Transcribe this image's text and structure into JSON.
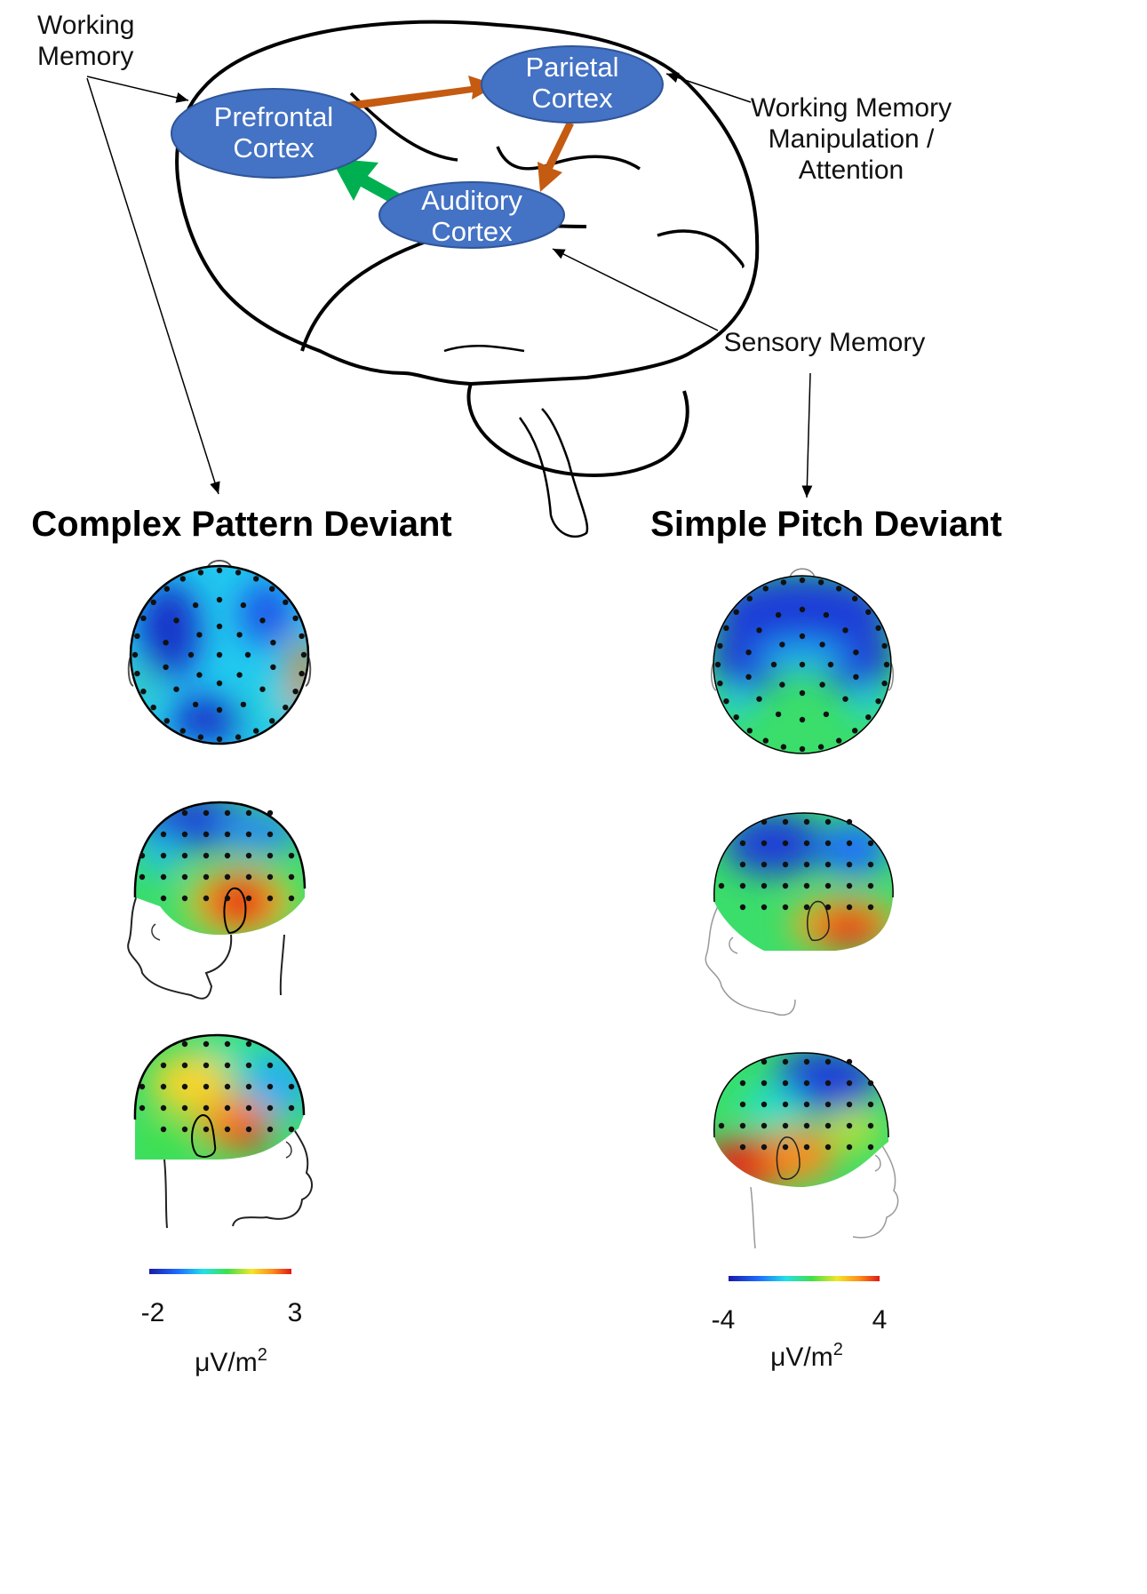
{
  "brain": {
    "nodes": [
      {
        "id": "prefrontal",
        "lines": [
          "Prefrontal",
          "Cortex"
        ]
      },
      {
        "id": "parietal",
        "lines": [
          "Parietal",
          "Cortex"
        ]
      },
      {
        "id": "auditory",
        "lines": [
          "Auditory",
          "Cortex"
        ]
      }
    ],
    "labels": {
      "working_memory": [
        "Working",
        "Memory"
      ],
      "wm_manipulation": [
        "Working Memory",
        "Manipulation /",
        "Attention"
      ],
      "sensory_memory": "Sensory Memory"
    },
    "colors": {
      "node_fill": "#4472c4",
      "node_stroke": "#2f5597",
      "arrow_brown": "#c55a11",
      "arrow_green": "#00b050",
      "outline": "#000000"
    }
  },
  "panels": [
    {
      "title": "Complex Pattern Deviant",
      "scale": {
        "min": "-2",
        "max": "3",
        "unit_base": "μV/m",
        "unit_sup": "2"
      },
      "maps": [
        "top view",
        "left view",
        "right view"
      ]
    },
    {
      "title": "Simple Pitch Deviant",
      "scale": {
        "min": "-4",
        "max": "4",
        "unit_base": "μV/m",
        "unit_sup": "2"
      },
      "maps": [
        "top view",
        "left view",
        "right view"
      ]
    }
  ]
}
